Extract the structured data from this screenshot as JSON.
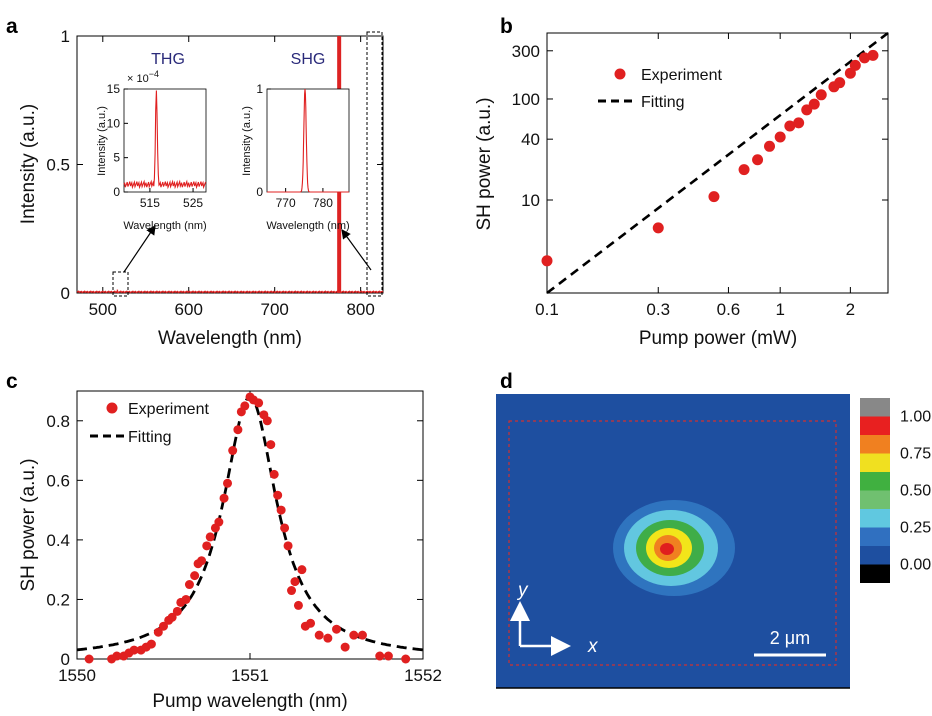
{
  "panels": {
    "a": "a",
    "b": "b",
    "c": "c",
    "d": "d"
  },
  "chart_data": [
    {
      "panel": "a",
      "type": "line",
      "xlabel": "Wavelength (nm)",
      "ylabel": "Intensity (a.u.)",
      "xlim": [
        470,
        826
      ],
      "ylim": [
        0,
        1
      ],
      "xticks": [
        "500",
        "600",
        "700",
        "800"
      ],
      "yticks": [
        "0",
        "0.5",
        "1"
      ],
      "color": "#dd2222",
      "peaks": [
        {
          "x": 517,
          "y": 0.0015
        },
        {
          "x": 775,
          "y": 1.0
        }
      ],
      "insets": [
        {
          "title": "THG",
          "xlabel": "Wavelength (nm)",
          "ylabel": "Intensity (a.u.)",
          "multiplier": "× 10",
          "exponent": "−4",
          "xlim": [
            509,
            528
          ],
          "ylim": [
            0,
            15
          ],
          "xticks": [
            "515",
            "525"
          ],
          "yticks": [
            "0",
            "5",
            "10",
            "15"
          ],
          "peak_x": 516.5,
          "peak_y": 15,
          "baseline": 1.0
        },
        {
          "title": "SHG",
          "xlabel": "Wavelength (nm)",
          "ylabel": "Intensity (a.u.)",
          "xlim": [
            765,
            787
          ],
          "ylim": [
            0,
            1
          ],
          "xticks": [
            "770",
            "780"
          ],
          "yticks": [
            "0",
            "1"
          ],
          "peak_x": 775.2,
          "peak_y": 1
        }
      ]
    },
    {
      "panel": "b",
      "type": "scatter",
      "scale": "log-log",
      "xlabel": "Pump power (mW)",
      "ylabel": "SH power (a.u.)",
      "xlim": [
        0.1,
        2.9
      ],
      "ylim": [
        1.2,
        450
      ],
      "xticks": [
        "0.1",
        "0.3",
        "0.6",
        "1",
        "2"
      ],
      "yticks": [
        "10",
        "40",
        "100",
        "300"
      ],
      "legend": [
        "Experiment",
        "Fitting"
      ],
      "legend_position": "top-left",
      "series": [
        {
          "name": "Experiment",
          "x": [
            0.1,
            0.3,
            0.52,
            0.7,
            0.8,
            0.9,
            1.0,
            1.1,
            1.2,
            1.3,
            1.4,
            1.5,
            1.7,
            1.8,
            2.0,
            2.1,
            2.3,
            2.5
          ],
          "y": [
            2.5,
            5.3,
            10.8,
            20,
            25,
            34,
            42,
            54,
            58,
            78,
            89,
            110,
            132,
            145,
            180,
            215,
            255,
            270
          ]
        },
        {
          "name": "Fitting",
          "x": [
            0.1,
            2.9
          ],
          "y": [
            1.2,
            450
          ]
        }
      ]
    },
    {
      "panel": "c",
      "type": "scatter",
      "xlabel": "Pump wavelength (nm)",
      "ylabel": "SH power (a.u.)",
      "xlim": [
        1550,
        1552
      ],
      "ylim": [
        0,
        0.9
      ],
      "xticks": [
        "1550",
        "1551",
        "1552"
      ],
      "yticks": [
        "0",
        "0.2",
        "0.4",
        "0.6",
        "0.8"
      ],
      "legend": [
        "Experiment",
        "Fitting"
      ],
      "legend_position": "top-left",
      "fit": {
        "center": 1551.0,
        "hwhm": 0.19,
        "peak": 0.88,
        "range": [
          1550.0,
          1552.0
        ]
      },
      "series": [
        {
          "name": "Experiment",
          "x": [
            1550.07,
            1550.2,
            1550.23,
            1550.27,
            1550.3,
            1550.33,
            1550.37,
            1550.4,
            1550.43,
            1550.47,
            1550.5,
            1550.53,
            1550.55,
            1550.58,
            1550.6,
            1550.63,
            1550.65,
            1550.68,
            1550.7,
            1550.72,
            1550.75,
            1550.77,
            1550.8,
            1550.82,
            1550.85,
            1550.87,
            1550.9,
            1550.93,
            1550.95,
            1550.97,
            1551.0,
            1551.02,
            1551.05,
            1551.08,
            1551.1,
            1551.12,
            1551.14,
            1551.16,
            1551.18,
            1551.2,
            1551.22,
            1551.24,
            1551.26,
            1551.28,
            1551.3,
            1551.32,
            1551.35,
            1551.4,
            1551.45,
            1551.5,
            1551.55,
            1551.6,
            1551.65,
            1551.75,
            1551.8,
            1551.9
          ],
          "y": [
            0.0,
            0.0,
            0.01,
            0.01,
            0.02,
            0.03,
            0.03,
            0.04,
            0.05,
            0.09,
            0.11,
            0.13,
            0.14,
            0.16,
            0.19,
            0.2,
            0.25,
            0.28,
            0.32,
            0.33,
            0.38,
            0.41,
            0.44,
            0.46,
            0.54,
            0.59,
            0.7,
            0.77,
            0.83,
            0.85,
            0.88,
            0.87,
            0.86,
            0.82,
            0.8,
            0.72,
            0.62,
            0.55,
            0.5,
            0.44,
            0.38,
            0.23,
            0.26,
            0.18,
            0.3,
            0.11,
            0.12,
            0.08,
            0.07,
            0.1,
            0.04,
            0.08,
            0.08,
            0.01,
            0.01,
            0.0
          ]
        },
        {
          "name": "Fitting",
          "x": [
            1550.0,
            1552.0
          ],
          "y": [
            0.0,
            0.0
          ]
        }
      ]
    },
    {
      "panel": "d",
      "type": "heatmap",
      "colorbar_ticks": [
        "1.00",
        "0.75",
        "0.50",
        "0.25",
        "0.00"
      ],
      "colorbar_colors": [
        "#888888",
        "#e82020",
        "#f08020",
        "#f0e020",
        "#40b040",
        "#70c070",
        "#60c8e0",
        "#3070c0",
        "#1e4fa0",
        "#000000"
      ],
      "background": "#1e4fa0",
      "axis_x": "x",
      "axis_y": "y",
      "scalebar": "2 μm",
      "spot_levels": [
        {
          "color": "#2f74bf"
        },
        {
          "color": "#62c7e0"
        },
        {
          "color": "#3fad48"
        },
        {
          "color": "#f2e51a"
        },
        {
          "color": "#f08020"
        },
        {
          "color": "#e01e1e"
        }
      ]
    }
  ]
}
